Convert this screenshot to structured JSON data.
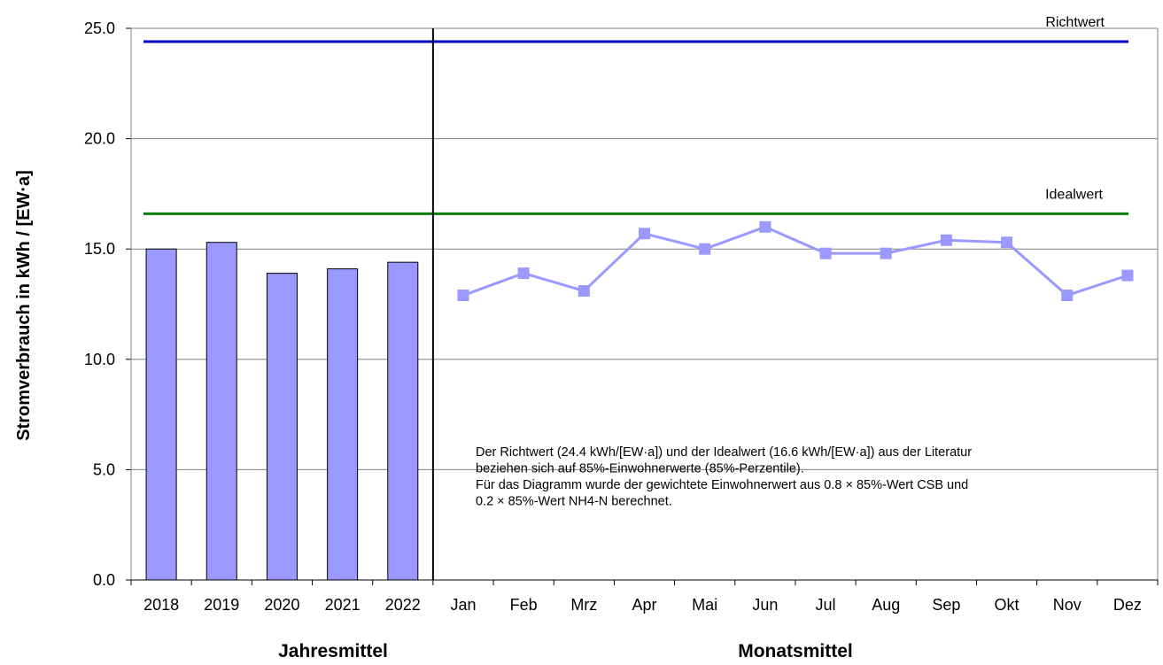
{
  "chart_data": {
    "type": "bar",
    "ylabel": "Stromverbrauch in kWh / [EW·a]",
    "ylim": [
      0,
      25
    ],
    "yticks": [
      "0.0",
      "5.0",
      "10.0",
      "15.0",
      "20.0",
      "25.0"
    ],
    "ytick_values": [
      0,
      5,
      10,
      15,
      20,
      25
    ],
    "grid": true,
    "colors": {
      "bars": "#9999ff",
      "line": "#9999ff",
      "richtwert": "#0000cc",
      "idealwert": "#008000"
    },
    "annual": {
      "group_label": "Jahresmittel",
      "categories": [
        "2018",
        "2019",
        "2020",
        "2021",
        "2022"
      ],
      "values": [
        15.0,
        15.3,
        13.9,
        14.1,
        14.4
      ]
    },
    "monthly": {
      "type": "line",
      "group_label": "Monatsmittel",
      "categories": [
        "Jan",
        "Feb",
        "Mrz",
        "Apr",
        "Mai",
        "Jun",
        "Jul",
        "Aug",
        "Sep",
        "Okt",
        "Nov",
        "Dez"
      ],
      "values": [
        12.9,
        13.9,
        13.1,
        15.7,
        15.0,
        16.0,
        14.8,
        14.8,
        15.4,
        15.3,
        12.9,
        13.8
      ]
    },
    "reference_lines": [
      {
        "name": "Richtwert",
        "value": 24.4
      },
      {
        "name": "Idealwert",
        "value": 16.6
      }
    ],
    "note": [
      "Der Richtwert (24.4 kWh/[EW·a]) und der Idealwert (16.6 kWh/[EW·a]) aus der Literatur",
      "beziehen sich auf 85%-Einwohnerwerte (85%-Perzentile).",
      "Für das Diagramm wurde der gewichtete Einwohnerwert aus 0.8 × 85%-Wert CSB und",
      "0.2 × 85%-Wert NH4-N berechnet."
    ]
  }
}
